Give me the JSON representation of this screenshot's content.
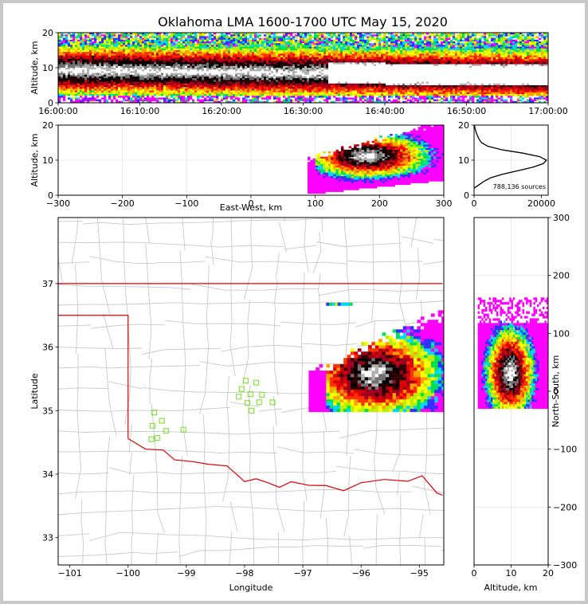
{
  "chart_data": {
    "type": "heatmap",
    "title": "Oklahoma LMA 1600-1700 UTC May 15, 2020",
    "panels": {
      "time_height": {
        "ylabel": "Altitude, km",
        "ylim": [
          0,
          20
        ],
        "yticks": [
          "0",
          "10",
          "20"
        ],
        "xticks": [
          "16:00:00",
          "16:10:00",
          "16:20:00",
          "16:30:00",
          "16:40:00",
          "16:50:00",
          "17:00:00"
        ]
      },
      "ew_height": {
        "xlabel": "East-West, km",
        "ylabel": "Altitude, km",
        "xlim": [
          -300,
          300
        ],
        "ylim": [
          0,
          20
        ],
        "xticks": [
          "−300",
          "−200",
          "−100",
          "0",
          "100",
          "200",
          "300"
        ],
        "yticks": [
          "0",
          "10",
          "20"
        ]
      },
      "histogram": {
        "xticks": [
          "0",
          "20000"
        ],
        "yticks": [
          "0",
          "10",
          "20"
        ],
        "label": "788,136 sources",
        "profile": [
          {
            "alt": 2,
            "count": 0
          },
          {
            "alt": 3,
            "count": 1500
          },
          {
            "alt": 4,
            "count": 3000
          },
          {
            "alt": 5,
            "count": 5000
          },
          {
            "alt": 6,
            "count": 8500
          },
          {
            "alt": 7,
            "count": 13000
          },
          {
            "alt": 8,
            "count": 17500
          },
          {
            "alt": 9,
            "count": 20500
          },
          {
            "alt": 10,
            "count": 21500
          },
          {
            "alt": 11,
            "count": 19500
          },
          {
            "alt": 12,
            "count": 14500
          },
          {
            "alt": 13,
            "count": 8000
          },
          {
            "alt": 14,
            "count": 4000
          },
          {
            "alt": 15,
            "count": 2200
          },
          {
            "alt": 16,
            "count": 1500
          },
          {
            "alt": 17,
            "count": 1000
          },
          {
            "alt": 18,
            "count": 600
          },
          {
            "alt": 19,
            "count": 300
          },
          {
            "alt": 20,
            "count": 100
          }
        ]
      },
      "plan_view": {
        "xlabel": "Longitude",
        "ylabel": "Latitude",
        "xticks": [
          "−101",
          "−100",
          "−99",
          "−98",
          "−97",
          "−96",
          "−95"
        ],
        "yticks": [
          "33",
          "34",
          "35",
          "36",
          "37"
        ]
      },
      "ns_height": {
        "xlabel": "Altitude, km",
        "ylabel": "North-South, km",
        "xticks": [
          "0",
          "10",
          "20"
        ],
        "yticks": [
          "300",
          "200",
          "100",
          "0",
          "−100",
          "−200",
          "−300"
        ]
      }
    },
    "stations": [
      {
        "lon": -99.55,
        "lat": 34.97
      },
      {
        "lon": -99.42,
        "lat": 34.84
      },
      {
        "lon": -99.35,
        "lat": 34.68
      },
      {
        "lon": -99.58,
        "lat": 34.76
      },
      {
        "lon": -99.5,
        "lat": 34.57
      },
      {
        "lon": -99.05,
        "lat": 34.7
      },
      {
        "lon": -99.6,
        "lat": 34.55
      },
      {
        "lon": -97.98,
        "lat": 35.47
      },
      {
        "lon": -98.05,
        "lat": 35.34
      },
      {
        "lon": -97.9,
        "lat": 35.26
      },
      {
        "lon": -98.1,
        "lat": 35.22
      },
      {
        "lon": -97.8,
        "lat": 35.44
      },
      {
        "lon": -97.7,
        "lat": 35.25
      },
      {
        "lon": -97.75,
        "lat": 35.13
      },
      {
        "lon": -97.95,
        "lat": 35.12
      },
      {
        "lon": -97.88,
        "lat": 35.0
      },
      {
        "lon": -97.52,
        "lat": 35.13
      }
    ]
  }
}
